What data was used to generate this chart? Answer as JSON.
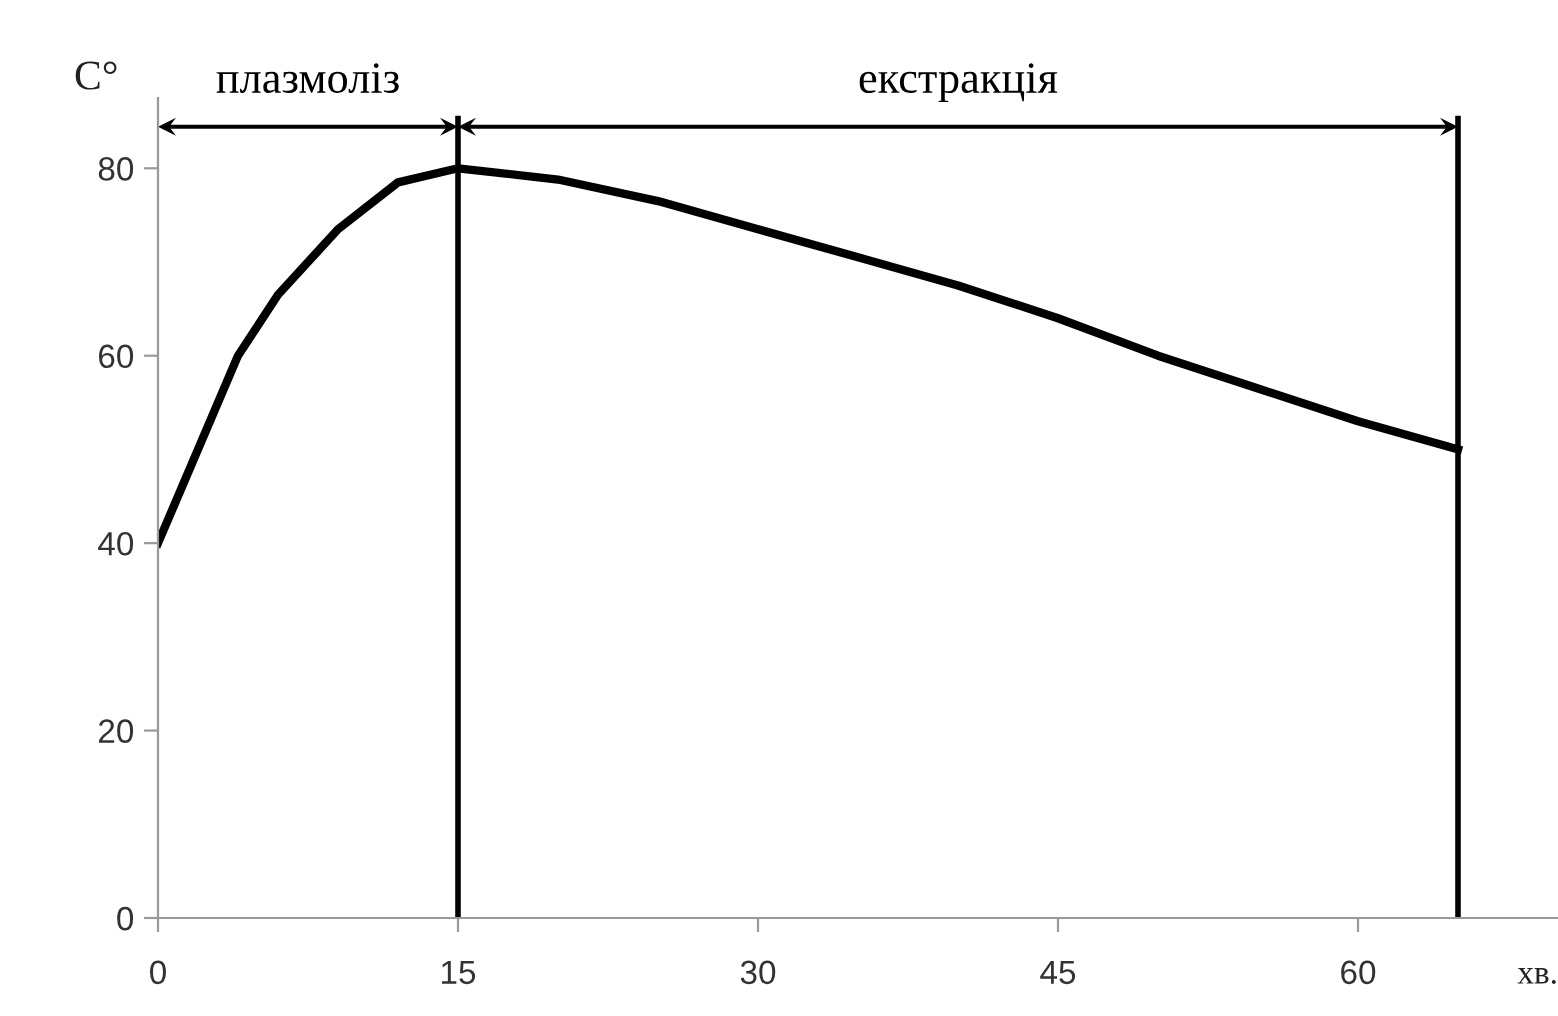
{
  "chart_data": {
    "type": "line",
    "ylabel": "С°",
    "xlabel": "хв.",
    "x": [
      0,
      2,
      4,
      6,
      9,
      12,
      15,
      20,
      25,
      30,
      35,
      40,
      45,
      50,
      55,
      60,
      65
    ],
    "series": [
      {
        "color": "#000000",
        "values": [
          40,
          50,
          60,
          66.5,
          73.5,
          78.5,
          80,
          78.8,
          76.5,
          73.5,
          70.5,
          67.5,
          64,
          60,
          56.5,
          53,
          50
        ]
      }
    ],
    "xlim": [
      0,
      70
    ],
    "xticks": [
      0,
      15,
      30,
      45,
      60
    ],
    "ylim": [
      0,
      87.5
    ],
    "yticks": [
      0,
      20,
      40,
      60,
      80
    ],
    "ref_lines": [
      {
        "axis": "x",
        "value": 15,
        "color": "#000000"
      },
      {
        "axis": "x",
        "value": 65,
        "color": "#000000"
      }
    ],
    "annotations": [
      "плазмоліз",
      "екстракція"
    ],
    "grid": false,
    "marker": "none",
    "line_style": "solid"
  }
}
